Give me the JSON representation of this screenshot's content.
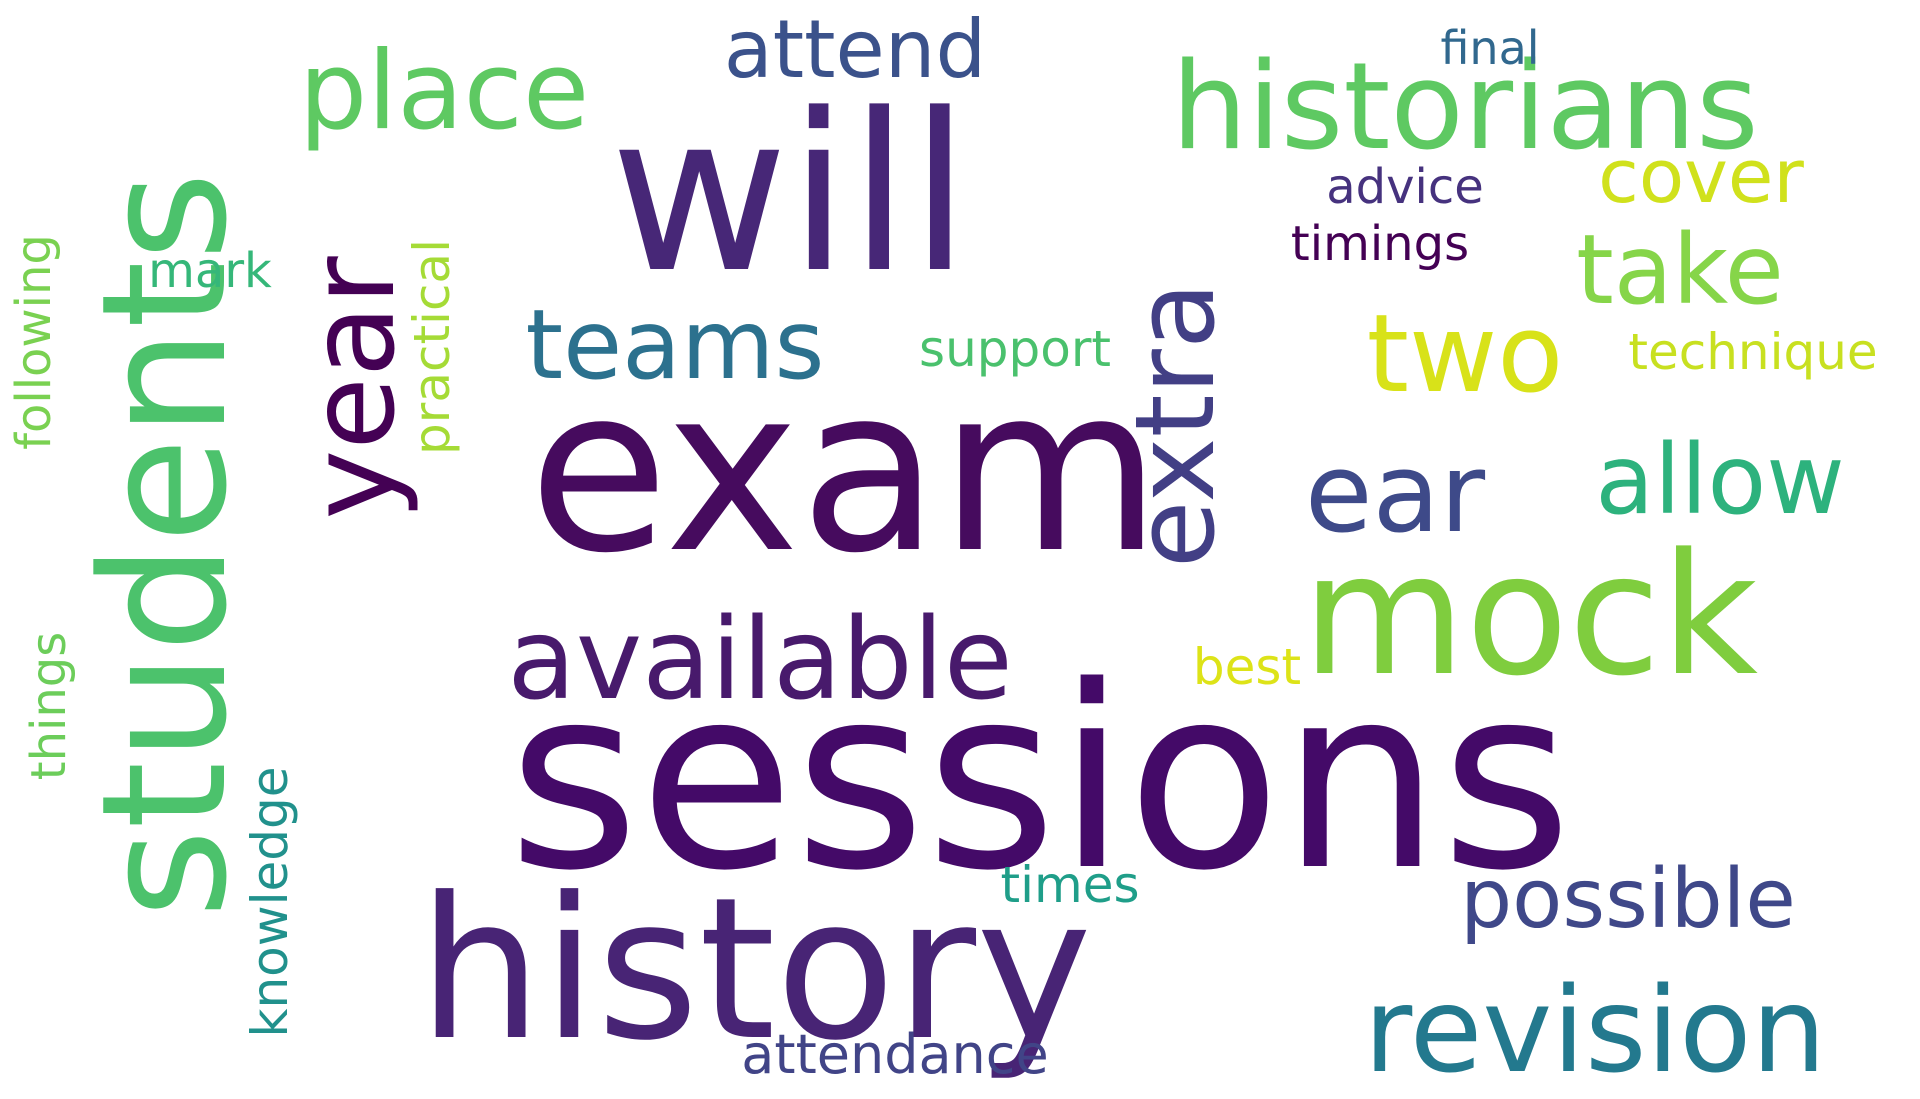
{
  "words": [
    {
      "text": "sessions",
      "color": "#440a68"
    },
    {
      "text": "exam",
      "color": "#460b5e"
    },
    {
      "text": "will",
      "color": "#472777"
    },
    {
      "text": "students",
      "color": "#4cc26c"
    },
    {
      "text": "history",
      "color": "#482475"
    },
    {
      "text": "mock",
      "color": "#7fcd3e"
    },
    {
      "text": "historians",
      "color": "#5ec962"
    },
    {
      "text": "year",
      "color": "#440154"
    },
    {
      "text": "available",
      "color": "#481a6c"
    },
    {
      "text": "revision",
      "color": "#23798e"
    },
    {
      "text": "extra",
      "color": "#423f85"
    },
    {
      "text": "ear",
      "color": "#3e4a89"
    },
    {
      "text": "place",
      "color": "#5ec962"
    },
    {
      "text": "two",
      "color": "#d8e219"
    },
    {
      "text": "teams",
      "color": "#2c718e"
    },
    {
      "text": "take",
      "color": "#86d549"
    },
    {
      "text": "allow",
      "color": "#2db27d"
    },
    {
      "text": "possible",
      "color": "#3f4889"
    },
    {
      "text": "attend",
      "color": "#3b528b"
    },
    {
      "text": "cover",
      "color": "#d0e11c"
    },
    {
      "text": "attendance",
      "color": "#414487"
    },
    {
      "text": "technique",
      "color": "#c8e020"
    },
    {
      "text": "knowledge",
      "color": "#21918c"
    },
    {
      "text": "times",
      "color": "#1f9e89"
    },
    {
      "text": "support",
      "color": "#4ac16d"
    },
    {
      "text": "practical",
      "color": "#a5db36"
    },
    {
      "text": "following",
      "color": "#7ad151"
    },
    {
      "text": "things",
      "color": "#6ccd5a"
    },
    {
      "text": "best",
      "color": "#dde318"
    },
    {
      "text": "timings",
      "color": "#440154"
    },
    {
      "text": "advice",
      "color": "#46327e"
    },
    {
      "text": "mark",
      "color": "#35b779"
    },
    {
      "text": "final",
      "color": "#31688e"
    }
  ]
}
